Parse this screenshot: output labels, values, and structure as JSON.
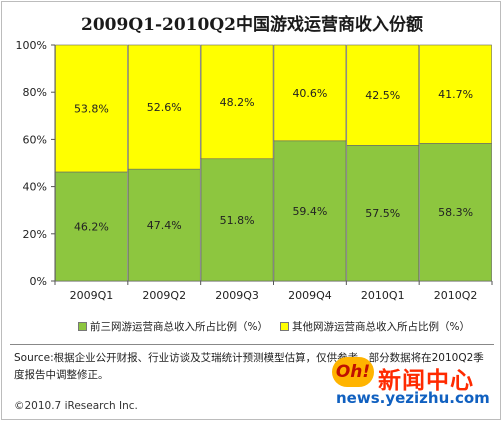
{
  "chart_data": {
    "type": "bar",
    "stacked": true,
    "title": "2009Q1-2010Q2中国游戏运营商收入份额",
    "categories": [
      "2009Q1",
      "2009Q2",
      "2009Q3",
      "2009Q4",
      "2010Q1",
      "2010Q2"
    ],
    "series": [
      {
        "name": "前三网游运营商总收入所占比例（%）",
        "values": [
          46.2,
          47.4,
          51.8,
          59.4,
          57.5,
          58.3
        ],
        "labels": [
          "46.2%",
          "47.4%",
          "51.8%",
          "59.4%",
          "57.5%",
          "58.3%"
        ],
        "color": "#8dc63f"
      },
      {
        "name": "其他网游运营商总收入所占比例（%）",
        "values": [
          53.8,
          52.6,
          48.2,
          40.6,
          42.5,
          41.7
        ],
        "labels": [
          "53.8%",
          "52.6%",
          "48.2%",
          "40.6%",
          "42.5%",
          "41.7%"
        ],
        "color": "#ffff00"
      }
    ],
    "yticks": [
      "0%",
      "20%",
      "40%",
      "60%",
      "80%",
      "100%"
    ],
    "ylim": [
      0,
      100
    ],
    "grid": false,
    "legend": "bottom"
  },
  "source_text": "Source:根据企业公开财报、行业访谈及艾瑞统计预测模型估算，仅供参考，部分数据将在2010Q2季度报告中调整修正。",
  "copyright": "©2010.7 iResearch Inc.",
  "watermark": {
    "mark": "Oh!",
    "text": "新闻中心",
    "url": "news.yezizhu.com"
  }
}
